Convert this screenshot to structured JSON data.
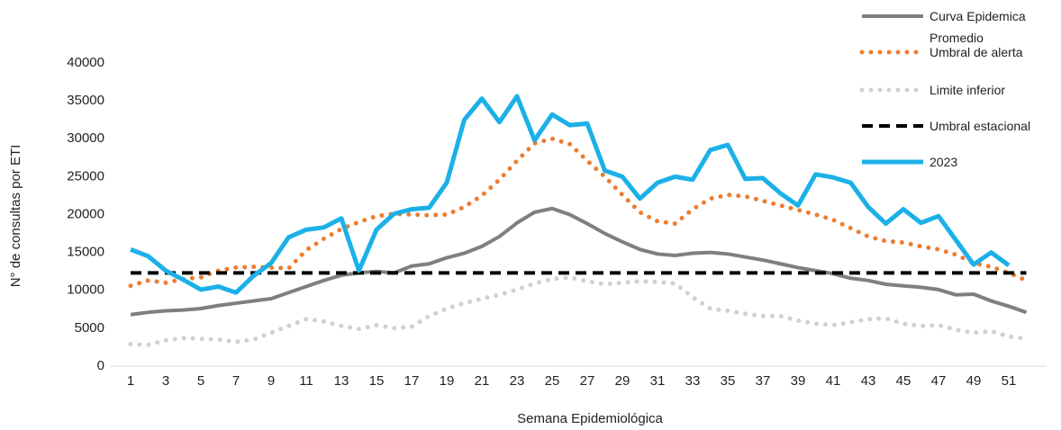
{
  "chart_data": {
    "type": "line",
    "x_label": "Semana Epidemiológica",
    "y_label": "N° de consultas por ETI",
    "categories": [
      1,
      null,
      3,
      null,
      5,
      null,
      7,
      null,
      9,
      null,
      11,
      null,
      13,
      null,
      15,
      null,
      17,
      null,
      19,
      null,
      21,
      null,
      23,
      null,
      25,
      null,
      27,
      null,
      29,
      null,
      31,
      null,
      33,
      null,
      35,
      null,
      37,
      null,
      39,
      null,
      41,
      null,
      43,
      null,
      45,
      null,
      47,
      null,
      49,
      null,
      51,
      null
    ],
    "ylim": [
      0,
      40000
    ],
    "yticks": [
      0,
      5000,
      10000,
      15000,
      20000,
      25000,
      30000,
      35000,
      40000
    ],
    "grid": false,
    "legend": "top-right",
    "series": [
      {
        "name": "Curva Epidemica Promedio",
        "color": "#7f7f7f",
        "line_style": "solid",
        "values": [
          6800,
          7100,
          7300,
          7400,
          7600,
          8000,
          8300,
          8600,
          8900,
          9700,
          10500,
          11300,
          12000,
          12300,
          12500,
          12300,
          13200,
          13500,
          14300,
          14900,
          15800,
          17100,
          18900,
          20300,
          20800,
          20000,
          18800,
          17500,
          16400,
          15400,
          14800,
          14600,
          14900,
          15000,
          14800,
          14400,
          14000,
          13500,
          13000,
          12600,
          12200,
          11600,
          11300,
          10800,
          10600,
          10400,
          10100,
          9400,
          9500,
          8600,
          7900,
          7100
        ]
      },
      {
        "name": "Umbral de alerta",
        "color": "#ed7d31",
        "line_style": "dotted",
        "values": [
          10600,
          11300,
          11000,
          11500,
          11700,
          12600,
          13000,
          13100,
          13000,
          12900,
          15300,
          16800,
          18100,
          19000,
          19800,
          20100,
          20000,
          19900,
          20000,
          21000,
          22500,
          24600,
          27100,
          29400,
          30000,
          29300,
          27100,
          25000,
          22600,
          20300,
          19100,
          18800,
          20700,
          22100,
          22600,
          22400,
          21800,
          21200,
          20600,
          20000,
          19300,
          18200,
          17100,
          16500,
          16300,
          15800,
          15400,
          14700,
          13600,
          13100,
          12300,
          11300
        ]
      },
      {
        "name": "Limite inferior",
        "color": "#d0d0d0",
        "line_style": "dotted",
        "values": [
          2900,
          2800,
          3400,
          3700,
          3600,
          3500,
          3200,
          3500,
          4400,
          5300,
          6200,
          5900,
          5300,
          4900,
          5400,
          5000,
          5200,
          6600,
          7600,
          8300,
          8900,
          9400,
          10100,
          10900,
          11500,
          11700,
          11200,
          10800,
          11000,
          11200,
          11100,
          10900,
          9100,
          7600,
          7300,
          6900,
          6600,
          6600,
          6000,
          5600,
          5400,
          5800,
          6200,
          6300,
          5600,
          5300,
          5400,
          4800,
          4400,
          4600,
          3900,
          3600
        ]
      },
      {
        "name": "Umbral estacional",
        "color": "#000000",
        "line_style": "dashed",
        "values": [
          12300,
          12300,
          12300,
          12300,
          12300,
          12300,
          12300,
          12300,
          12300,
          12300,
          12300,
          12300,
          12300,
          12300,
          12300,
          12300,
          12300,
          12300,
          12300,
          12300,
          12300,
          12300,
          12300,
          12300,
          12300,
          12300,
          12300,
          12300,
          12300,
          12300,
          12300,
          12300,
          12300,
          12300,
          12300,
          12300,
          12300,
          12300,
          12300,
          12300,
          12300,
          12300,
          12300,
          12300,
          12300,
          12300,
          12300,
          12300,
          12300,
          12300,
          12300,
          12300
        ]
      },
      {
        "name": "2023",
        "color": "#1cb0e8",
        "line_style": "solid",
        "values": [
          15400,
          14500,
          12600,
          11400,
          10100,
          10500,
          9700,
          11900,
          13600,
          17000,
          18000,
          18300,
          19500,
          12600,
          18000,
          20100,
          20700,
          20900,
          24200,
          32500,
          35300,
          32200,
          35600,
          29800,
          33200,
          31800,
          32000,
          25800,
          25000,
          22100,
          24200,
          25000,
          24600,
          28500,
          29200,
          24700,
          24800,
          22800,
          21200,
          25300,
          24900,
          24200,
          21000,
          18800,
          20700,
          18900,
          19800,
          16600,
          13400,
          15000,
          13300,
          null
        ]
      }
    ]
  }
}
